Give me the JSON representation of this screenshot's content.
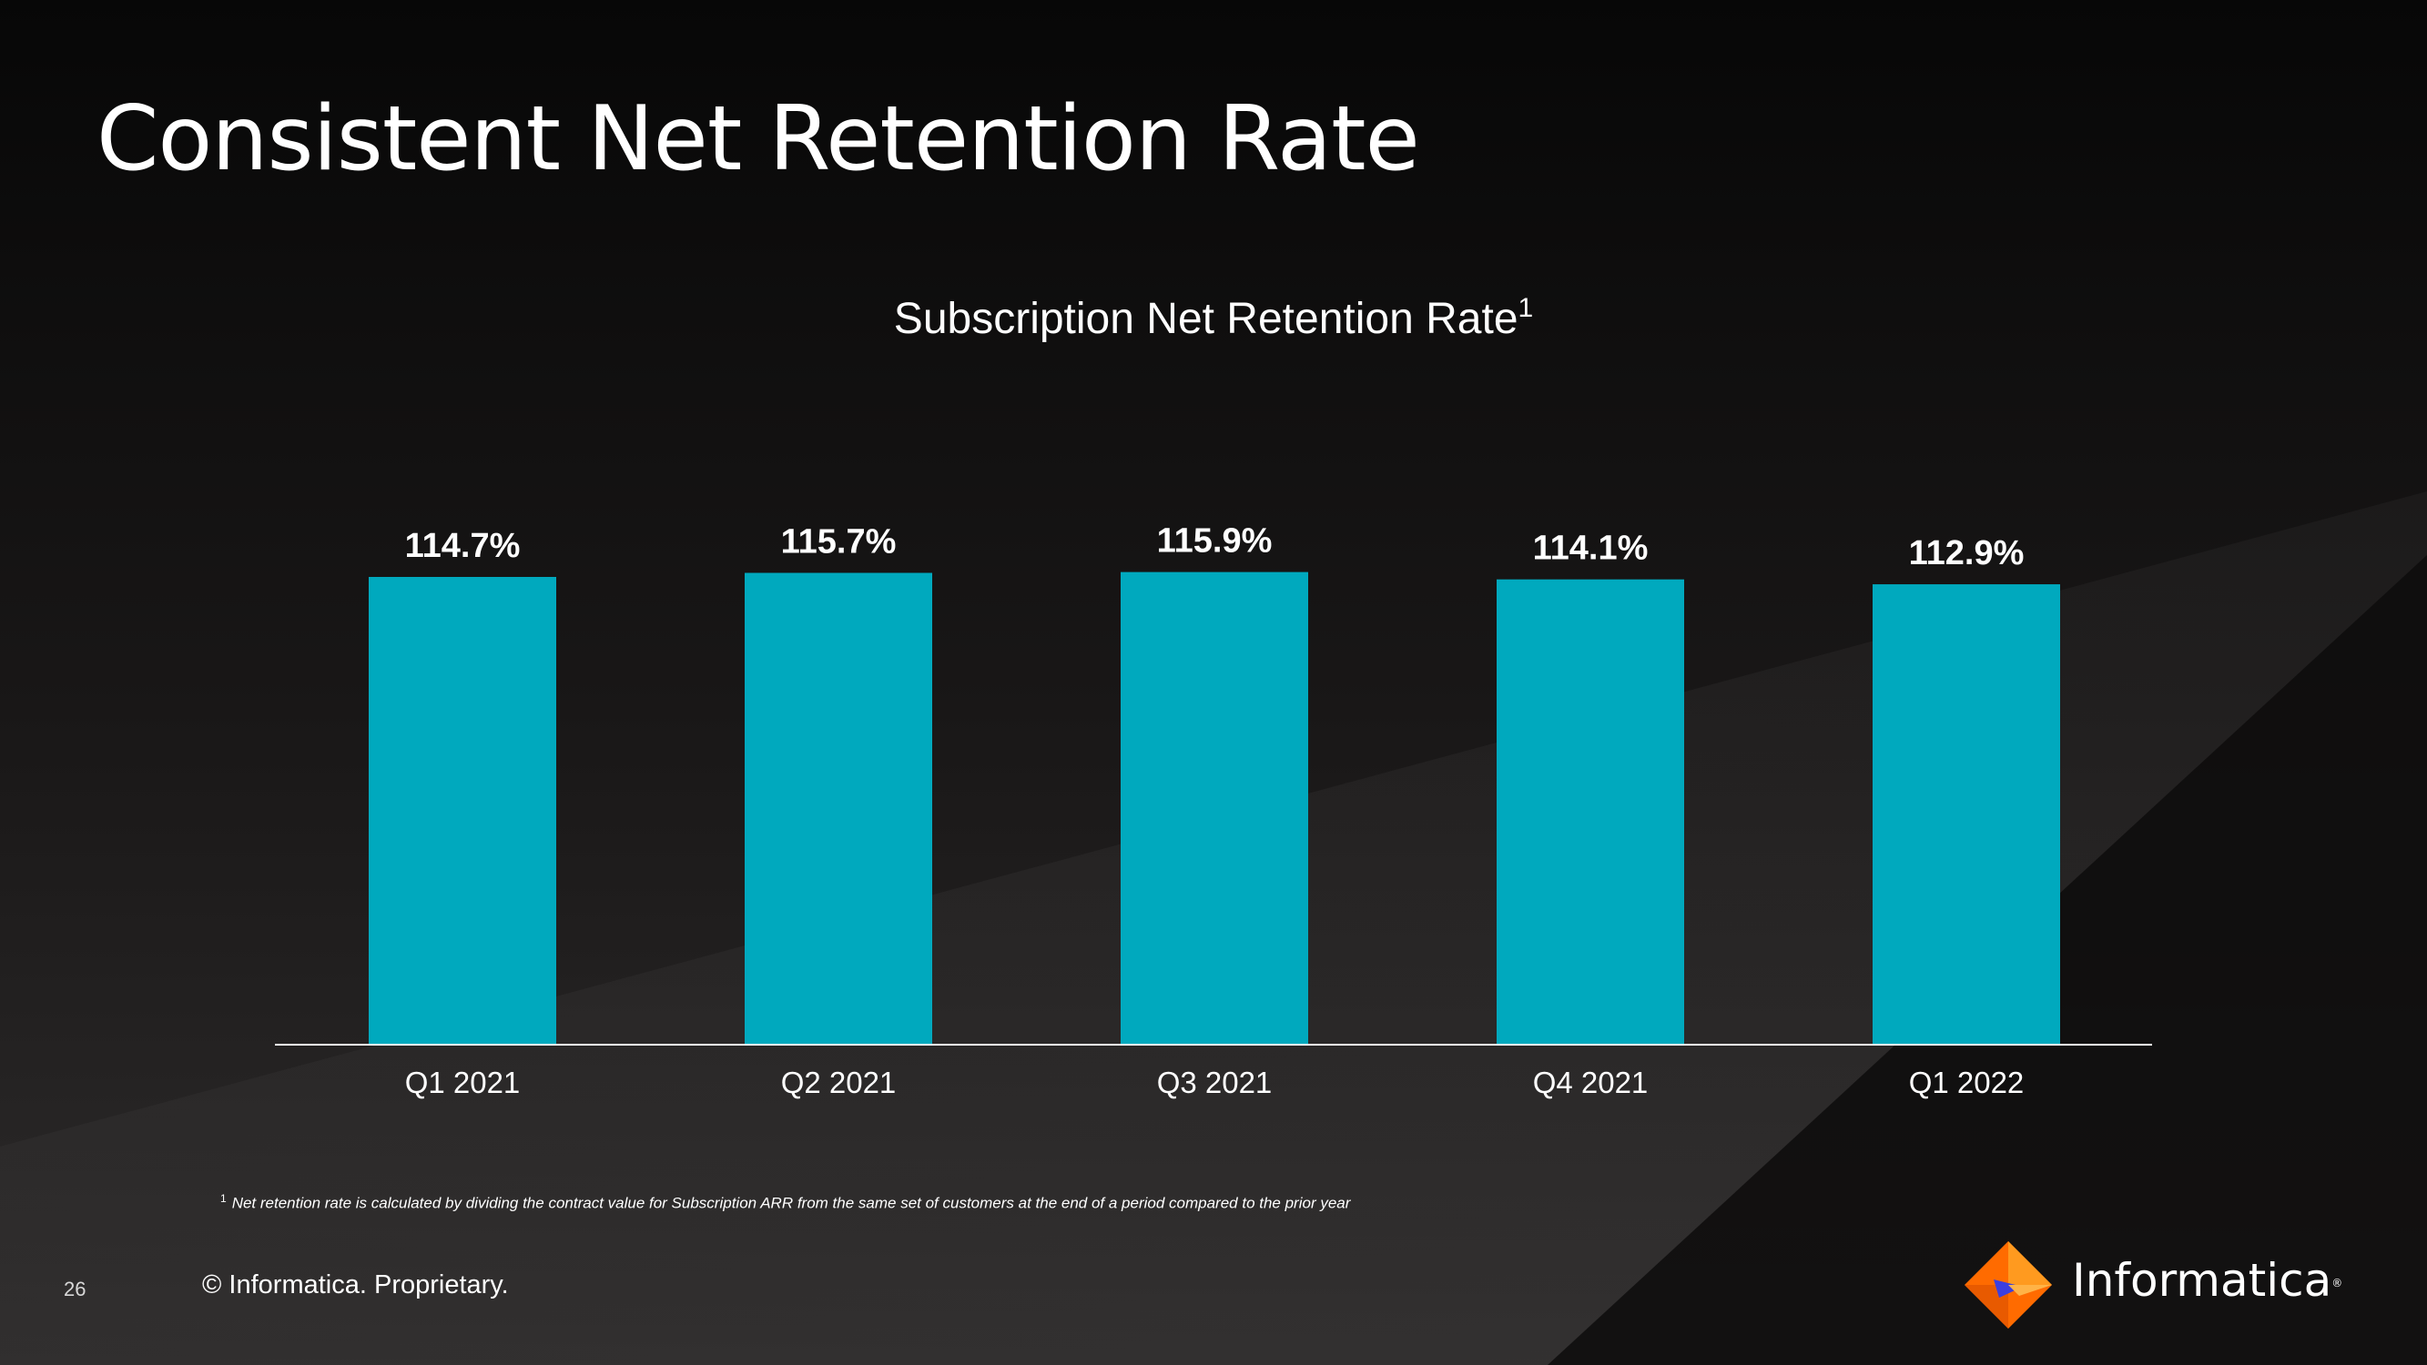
{
  "slide": {
    "title": "Consistent Net Retention Rate",
    "page_number": "26",
    "copyright": "© Informatica. Proprietary.",
    "footnote_marker": "1",
    "footnote_text": "Net retention rate is calculated by dividing the contract value for Subscription ARR from the same set of customers at the end of a period compared to the prior year",
    "brand": "Informatica"
  },
  "colors": {
    "bar": "#00A9BE",
    "axis": "#ffffff",
    "text": "#ffffff",
    "logo_orange": "#FF6B00",
    "logo_orange_light": "#FF9A1F",
    "logo_blue": "#3B3FE0"
  },
  "icons": {
    "logo": "informatica-diamond-logo"
  },
  "chart_data": {
    "type": "bar",
    "title": "Subscription Net Retention Rate",
    "title_superscript": "1",
    "categories": [
      "Q1 2021",
      "Q2 2021",
      "Q3 2021",
      "Q4 2021",
      "Q1 2022"
    ],
    "values": [
      114.7,
      115.7,
      115.9,
      114.1,
      112.9
    ],
    "data_labels": [
      "114.7%",
      "115.7%",
      "115.9%",
      "114.1%",
      "112.9%"
    ],
    "unit": "%",
    "xlabel": "",
    "ylabel": "",
    "grid": false,
    "legend": "none"
  }
}
